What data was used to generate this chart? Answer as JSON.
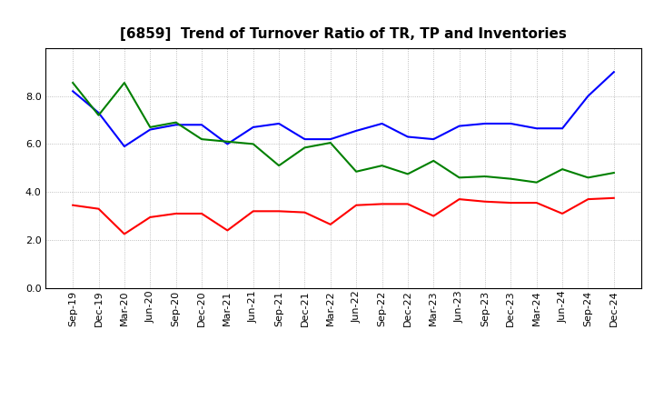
{
  "title": "[6859]  Trend of Turnover Ratio of TR, TP and Inventories",
  "x_labels": [
    "Sep-19",
    "Dec-19",
    "Mar-20",
    "Jun-20",
    "Sep-20",
    "Dec-20",
    "Mar-21",
    "Jun-21",
    "Sep-21",
    "Dec-21",
    "Mar-22",
    "Jun-22",
    "Sep-22",
    "Dec-22",
    "Mar-23",
    "Jun-23",
    "Sep-23",
    "Dec-23",
    "Mar-24",
    "Jun-24",
    "Sep-24",
    "Dec-24"
  ],
  "trade_receivables": [
    3.45,
    3.3,
    2.25,
    2.95,
    3.1,
    3.1,
    2.4,
    3.2,
    3.2,
    3.15,
    2.65,
    3.45,
    3.5,
    3.5,
    3.0,
    3.7,
    3.6,
    3.55,
    3.55,
    3.1,
    3.7,
    3.75
  ],
  "trade_payables": [
    8.2,
    7.3,
    5.9,
    6.6,
    6.8,
    6.8,
    6.0,
    6.7,
    6.85,
    6.2,
    6.2,
    6.55,
    6.85,
    6.3,
    6.2,
    6.75,
    6.85,
    6.85,
    6.65,
    6.65,
    8.0,
    9.0
  ],
  "inventories": [
    8.55,
    7.2,
    8.55,
    6.7,
    6.9,
    6.2,
    6.1,
    6.0,
    5.1,
    5.85,
    6.05,
    4.85,
    5.1,
    4.75,
    5.3,
    4.6,
    4.65,
    4.55,
    4.4,
    4.95,
    4.6,
    4.8
  ],
  "tr_color": "#ff0000",
  "tp_color": "#0000ff",
  "inv_color": "#008000",
  "ylim": [
    0,
    10
  ],
  "yticks": [
    0.0,
    2.0,
    4.0,
    6.0,
    8.0
  ],
  "background_color": "#ffffff",
  "grid_color": "#999999",
  "title_fontsize": 11,
  "legend_fontsize": 9,
  "axis_fontsize": 8,
  "linewidth": 1.5
}
